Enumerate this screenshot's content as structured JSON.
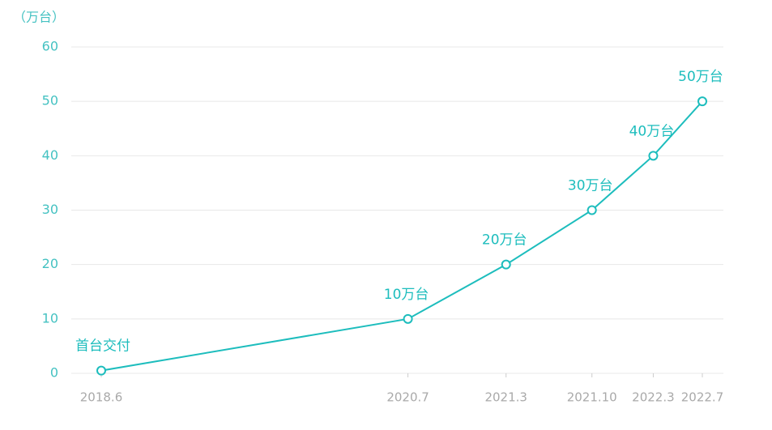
{
  "chart_data": {
    "type": "line",
    "y_label": "（万台）",
    "x": [
      "2018.6",
      "2020.7",
      "2021.3",
      "2021.10",
      "2022.3",
      "2022.7"
    ],
    "values": [
      0.5,
      10,
      20,
      30,
      40,
      50
    ],
    "value_labels": [
      "首台交付",
      "10万台",
      "20万台",
      "30万台",
      "40万台",
      "50万台"
    ],
    "color": "#1dbdbd",
    "ylim": [
      0,
      60
    ],
    "yticks": [
      0,
      10,
      20,
      30,
      40,
      50,
      60
    ],
    "grid": true
  }
}
